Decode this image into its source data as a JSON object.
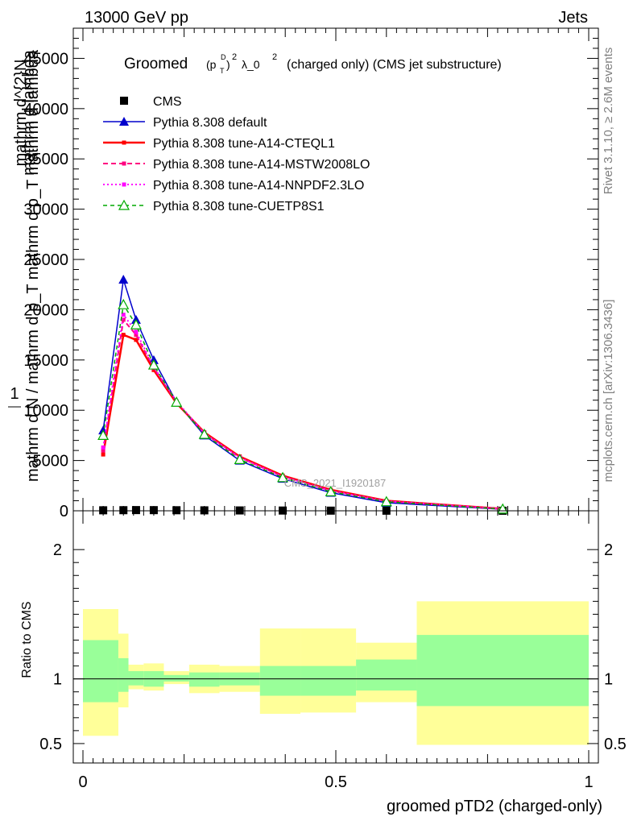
{
  "header": {
    "left": "13000 GeV pp",
    "right": "Jets"
  },
  "side_labels": {
    "rivet": "Rivet 3.1.10, ≥ 2.6M events",
    "mcplots": "mcplots.cern.ch [arXiv:1306.3436]"
  },
  "watermark": "CMS_2021_I1920187",
  "chart_data": [
    {
      "type": "line",
      "title": {
        "prefix": "Groomed",
        "formula_base": "(p",
        "formula_sub": "T",
        "formula_sup": "D",
        "formula_close": ")",
        "formula_pow": "2",
        "suffix": "λ_0",
        "suffix_pow": "2",
        "tail": "(charged only) (CMS jet substructure)"
      },
      "xlim": [
        0,
        1
      ],
      "ylim": [
        0,
        48000
      ],
      "y_ticks": [
        0,
        5000,
        10000,
        15000,
        20000,
        25000,
        30000,
        35000,
        40000,
        45000
      ],
      "y_tick_labels": [
        "0",
        "5000",
        "10000",
        "15000",
        "20000",
        "25000",
        "30000",
        "35000",
        "40000",
        "45000"
      ],
      "ylabel": {
        "one": "1",
        "top": "mathrm d^{2}N",
        "bottom": "mathrm d N / mathrm d p_T mathrm d p_T mathrm d lambda",
        "over": "mathrm d lambda"
      },
      "legend_position": "top-left",
      "series": [
        {
          "name": "CMS",
          "color": "#000000",
          "style": "markers",
          "x": [
            0.04,
            0.08,
            0.105,
            0.14,
            0.185,
            0.24,
            0.31,
            0.395,
            0.49,
            0.6,
            0.83
          ],
          "values": [
            50,
            60,
            70,
            65,
            55,
            45,
            35,
            25,
            15,
            10,
            5
          ]
        },
        {
          "name": "Pythia 8.308 default",
          "color": "#0000cc",
          "style": "solid-triangle",
          "x": [
            0.04,
            0.08,
            0.105,
            0.14,
            0.185,
            0.24,
            0.31,
            0.395,
            0.49,
            0.6,
            0.83
          ],
          "values": [
            8000,
            23000,
            19000,
            15000,
            10800,
            7500,
            5000,
            3200,
            1800,
            800,
            150
          ]
        },
        {
          "name": "Pythia 8.308 tune-A14-CTEQL1",
          "color": "#ff0000",
          "style": "solid-thick",
          "x": [
            0.04,
            0.08,
            0.105,
            0.14,
            0.185,
            0.24,
            0.31,
            0.395,
            0.49,
            0.6,
            0.83
          ],
          "values": [
            5600,
            17500,
            17000,
            14000,
            10700,
            7800,
            5400,
            3500,
            2100,
            1000,
            200
          ]
        },
        {
          "name": "Pythia 8.308 tune-A14-MSTW2008LO",
          "color": "#ff0080",
          "style": "dashed",
          "x": [
            0.04,
            0.08,
            0.105,
            0.14,
            0.185,
            0.24,
            0.31,
            0.395,
            0.49,
            0.6,
            0.83
          ],
          "values": [
            6000,
            19000,
            17500,
            14200,
            10800,
            7700,
            5300,
            3400,
            2000,
            950,
            190
          ]
        },
        {
          "name": "Pythia 8.308 tune-A14-NNPDF2.3LO",
          "color": "#ff00ff",
          "style": "dotted",
          "x": [
            0.04,
            0.08,
            0.105,
            0.14,
            0.185,
            0.24,
            0.31,
            0.395,
            0.49,
            0.6,
            0.83
          ],
          "values": [
            6300,
            19500,
            17800,
            14300,
            10900,
            7700,
            5300,
            3400,
            2000,
            950,
            190
          ]
        },
        {
          "name": "Pythia 8.308 tune-CUETP8S1",
          "color": "#00aa00",
          "style": "dashed-open-triangle",
          "x": [
            0.04,
            0.08,
            0.105,
            0.14,
            0.185,
            0.24,
            0.31,
            0.395,
            0.49,
            0.6,
            0.83
          ],
          "values": [
            7500,
            20500,
            18500,
            14500,
            10800,
            7600,
            5100,
            3300,
            1900,
            900,
            170
          ]
        }
      ]
    },
    {
      "type": "area",
      "ylabel": "Ratio to CMS",
      "xlabel": "groomed pTD2 (charged-only)",
      "xlim": [
        0,
        1
      ],
      "ylim": [
        0.35,
        2.3
      ],
      "x_ticks": [
        0,
        0.5,
        1
      ],
      "x_tick_labels": [
        "0",
        "0.5",
        "1"
      ],
      "y_ticks": [
        0.5,
        1,
        2
      ],
      "y_tick_labels": [
        "0.5",
        "1",
        "2"
      ],
      "reference_value": 1,
      "bands": [
        {
          "x0": 0.0,
          "x1": 0.07,
          "yellow": [
            0.56,
            1.54
          ],
          "green": [
            0.82,
            1.3
          ]
        },
        {
          "x0": 0.07,
          "x1": 0.09,
          "yellow": [
            0.78,
            1.35
          ],
          "green": [
            0.9,
            1.16
          ]
        },
        {
          "x0": 0.09,
          "x1": 0.12,
          "yellow": [
            0.92,
            1.11
          ],
          "green": [
            0.95,
            1.06
          ]
        },
        {
          "x0": 0.12,
          "x1": 0.16,
          "yellow": [
            0.91,
            1.12
          ],
          "green": [
            0.94,
            1.06
          ]
        },
        {
          "x0": 0.16,
          "x1": 0.21,
          "yellow": [
            0.96,
            1.06
          ],
          "green": [
            0.98,
            1.03
          ]
        },
        {
          "x0": 0.21,
          "x1": 0.27,
          "yellow": [
            0.89,
            1.11
          ],
          "green": [
            0.94,
            1.05
          ]
        },
        {
          "x0": 0.27,
          "x1": 0.35,
          "yellow": [
            0.9,
            1.1
          ],
          "green": [
            0.95,
            1.05
          ]
        },
        {
          "x0": 0.35,
          "x1": 0.43,
          "yellow": [
            0.73,
            1.39
          ],
          "green": [
            0.87,
            1.1
          ]
        },
        {
          "x0": 0.43,
          "x1": 0.54,
          "yellow": [
            0.74,
            1.39
          ],
          "green": [
            0.87,
            1.1
          ]
        },
        {
          "x0": 0.54,
          "x1": 0.66,
          "yellow": [
            0.82,
            1.28
          ],
          "green": [
            0.91,
            1.15
          ]
        },
        {
          "x0": 0.66,
          "x1": 1.0,
          "yellow": [
            0.49,
            1.6
          ],
          "green": [
            0.79,
            1.34
          ]
        }
      ]
    }
  ]
}
